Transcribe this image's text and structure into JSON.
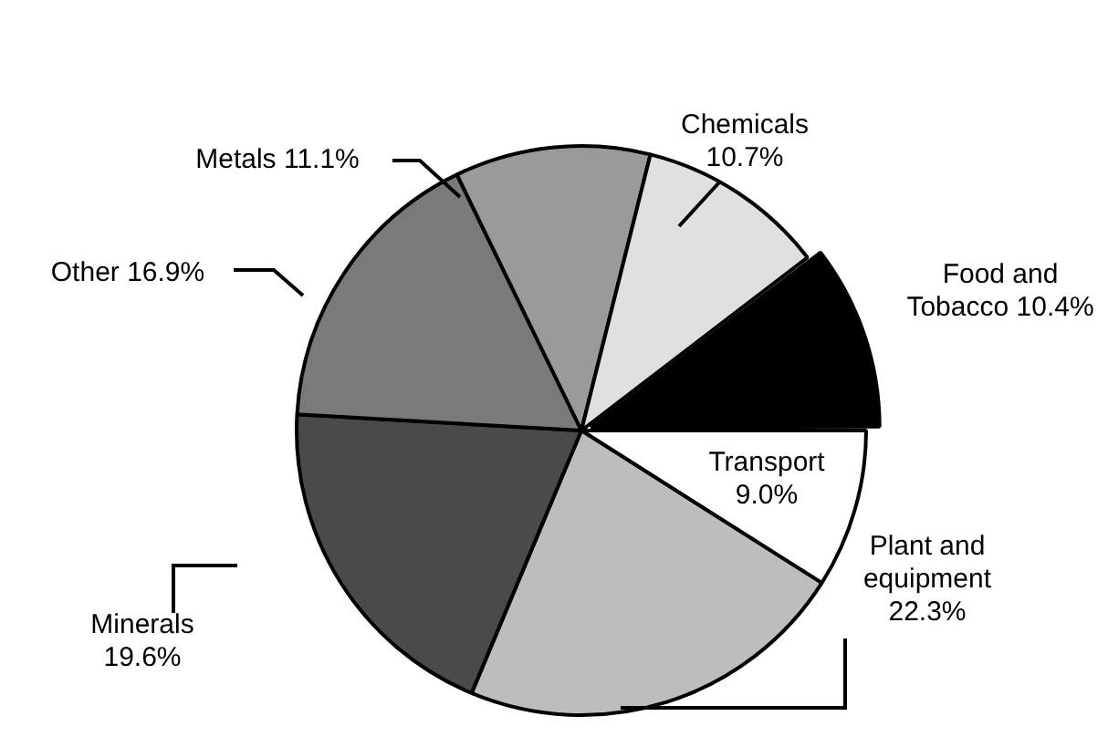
{
  "chart_data": {
    "type": "pie",
    "categories": [
      "Transport",
      "Plant and equipment",
      "Minerals",
      "Other",
      "Metals",
      "Chemicals",
      "Food and Tobacco"
    ],
    "values": [
      9.0,
      22.3,
      19.6,
      16.9,
      11.1,
      10.7,
      10.4
    ],
    "value_labels": [
      "9.0%",
      "22.3%",
      "19.6%",
      "16.9%",
      "11.1%",
      "10.7%",
      "10.4%"
    ],
    "colors": [
      "#ffffff",
      "#bdbdbd",
      "#4a4a4a",
      "#7a7a7a",
      "#9a9a9a",
      "#e0e0e0",
      "#000000"
    ]
  }
}
